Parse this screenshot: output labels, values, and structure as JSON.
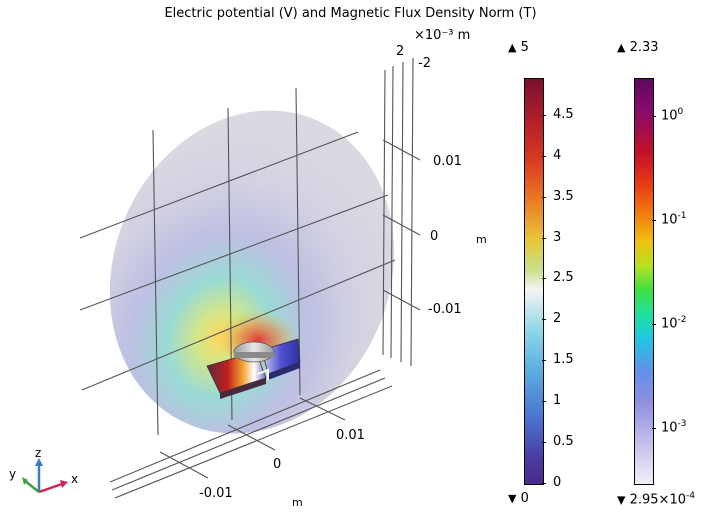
{
  "plot": {
    "title": "Electric potential (V) and Magnetic Flux Density Norm (T)",
    "scale_unit": "×10⁻³ m",
    "axis_unit_z": "m",
    "axis_unit_x": "m",
    "ticks_top": [
      "2",
      "-2"
    ],
    "ticks_right": [
      "0.01",
      "0",
      "-0.01"
    ],
    "ticks_bottom": [
      "0.01",
      "0",
      "-0.01"
    ],
    "axes": {
      "z": "z",
      "y": "y",
      "x": "x"
    }
  },
  "legend_potential": {
    "max_label": "5",
    "min_label": "0",
    "ticks": [
      "4.5",
      "4",
      "3.5",
      "3",
      "2.5",
      "2",
      "1.5",
      "1",
      "0.5",
      "0"
    ],
    "color_top": "#7a1030",
    "color_bottom": "#4a2a8c"
  },
  "legend_flux": {
    "max_label": "2.33",
    "min_label_mant": "2.95×10",
    "min_label_exp": "-4",
    "tick_base": "10",
    "tick_exps": [
      "0",
      "-1",
      "-2",
      "-3"
    ],
    "color_top": "#5c0a5c",
    "color_bottom": "#f0f0f8"
  }
}
